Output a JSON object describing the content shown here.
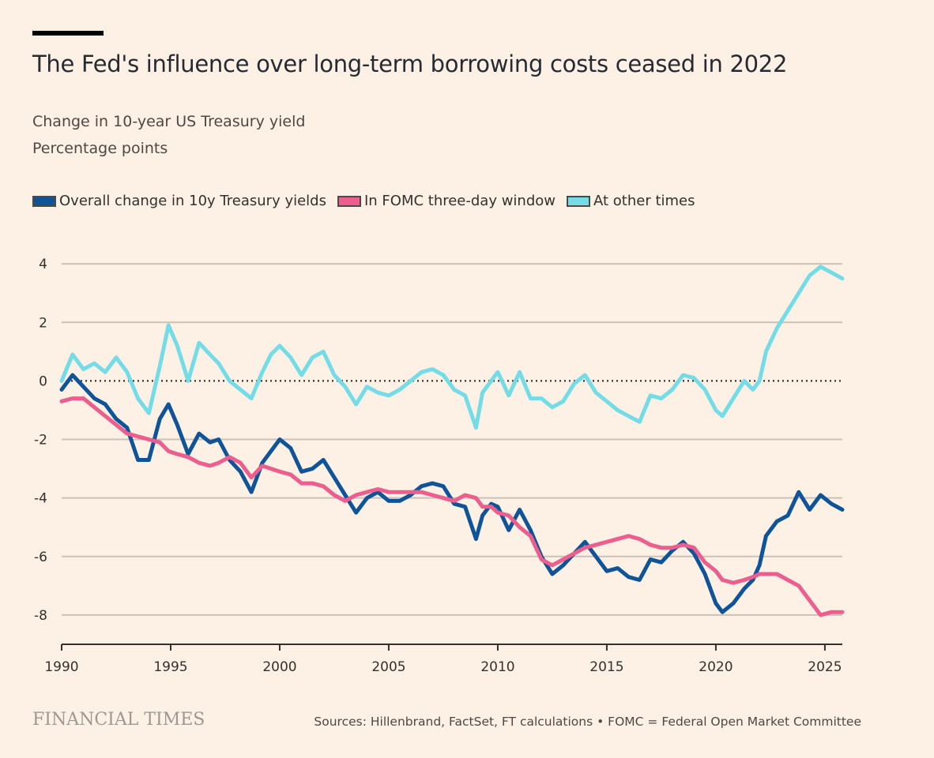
{
  "header": {
    "title": "The Fed's influence over long-term borrowing costs ceased in 2022",
    "subtitle_line1": "Change in 10-year US Treasury yield",
    "subtitle_line2": "Percentage points"
  },
  "legend": [
    {
      "label": "Overall change in 10y Treasury yields",
      "color": "#0F5499"
    },
    {
      "label": "In FOMC three-day window",
      "color": "#EB5E8D"
    },
    {
      "label": "At other times",
      "color": "#74DCE6"
    }
  ],
  "footer": {
    "brand": "FINANCIAL TIMES",
    "source": "Sources: Hillenbrand, FactSet, FT calculations • FOMC = Federal Open Market Committee"
  },
  "chart_data": {
    "type": "line",
    "xlim": [
      1990,
      2025.8
    ],
    "ylim": [
      -9,
      4.3
    ],
    "x_ticks": [
      1990,
      1995,
      2000,
      2005,
      2010,
      2015,
      2020,
      2025
    ],
    "y_ticks": [
      4,
      2,
      0,
      -2,
      -4,
      -6,
      -8
    ],
    "y_tick_labels": [
      "4",
      "2",
      "0",
      "-2",
      "-4",
      "-6",
      "-8"
    ],
    "zero_line": "dotted",
    "grid": "horizontal",
    "series": [
      {
        "name": "At other times",
        "color": "#74DCE6",
        "points": [
          [
            1990,
            0.0
          ],
          [
            1990.5,
            0.9
          ],
          [
            1991,
            0.4
          ],
          [
            1991.5,
            0.6
          ],
          [
            1992,
            0.3
          ],
          [
            1992.5,
            0.8
          ],
          [
            1993,
            0.3
          ],
          [
            1993.5,
            -0.6
          ],
          [
            1994,
            -1.1
          ],
          [
            1994.5,
            0.5
          ],
          [
            1994.9,
            1.9
          ],
          [
            1995.3,
            1.2
          ],
          [
            1995.8,
            0.0
          ],
          [
            1996.3,
            1.3
          ],
          [
            1996.8,
            0.9
          ],
          [
            1997.2,
            0.6
          ],
          [
            1997.7,
            0.0
          ],
          [
            1998.2,
            -0.3
          ],
          [
            1998.7,
            -0.6
          ],
          [
            1999.2,
            0.3
          ],
          [
            1999.6,
            0.9
          ],
          [
            2000.0,
            1.2
          ],
          [
            2000.5,
            0.8
          ],
          [
            2001.0,
            0.2
          ],
          [
            2001.5,
            0.8
          ],
          [
            2002.0,
            1.0
          ],
          [
            2002.5,
            0.2
          ],
          [
            2003.0,
            -0.2
          ],
          [
            2003.5,
            -0.8
          ],
          [
            2004.0,
            -0.2
          ],
          [
            2004.5,
            -0.4
          ],
          [
            2005.0,
            -0.5
          ],
          [
            2005.5,
            -0.3
          ],
          [
            2006.0,
            0.0
          ],
          [
            2006.5,
            0.3
          ],
          [
            2007.0,
            0.4
          ],
          [
            2007.5,
            0.2
          ],
          [
            2008.0,
            -0.3
          ],
          [
            2008.5,
            -0.5
          ],
          [
            2009.0,
            -1.6
          ],
          [
            2009.3,
            -0.4
          ],
          [
            2009.7,
            0.0
          ],
          [
            2010.0,
            0.3
          ],
          [
            2010.5,
            -0.5
          ],
          [
            2011.0,
            0.3
          ],
          [
            2011.5,
            -0.6
          ],
          [
            2012.0,
            -0.6
          ],
          [
            2012.5,
            -0.9
          ],
          [
            2013.0,
            -0.7
          ],
          [
            2013.5,
            -0.1
          ],
          [
            2014.0,
            0.2
          ],
          [
            2014.5,
            -0.4
          ],
          [
            2015.0,
            -0.7
          ],
          [
            2015.5,
            -1.0
          ],
          [
            2016.0,
            -1.2
          ],
          [
            2016.5,
            -1.4
          ],
          [
            2017.0,
            -0.5
          ],
          [
            2017.5,
            -0.6
          ],
          [
            2018.0,
            -0.3
          ],
          [
            2018.5,
            0.2
          ],
          [
            2019.0,
            0.1
          ],
          [
            2019.5,
            -0.3
          ],
          [
            2020.0,
            -1.0
          ],
          [
            2020.3,
            -1.2
          ],
          [
            2020.8,
            -0.6
          ],
          [
            2021.3,
            0.0
          ],
          [
            2021.7,
            -0.3
          ],
          [
            2022.0,
            0.0
          ],
          [
            2022.3,
            1.0
          ],
          [
            2022.8,
            1.8
          ],
          [
            2023.3,
            2.4
          ],
          [
            2023.8,
            3.0
          ],
          [
            2024.3,
            3.6
          ],
          [
            2024.8,
            3.9
          ],
          [
            2025.3,
            3.7
          ],
          [
            2025.8,
            3.5
          ]
        ]
      },
      {
        "name": "Overall change in 10y Treasury yields",
        "color": "#0F5499",
        "points": [
          [
            1990,
            -0.3
          ],
          [
            1990.5,
            0.2
          ],
          [
            1991,
            -0.2
          ],
          [
            1991.5,
            -0.6
          ],
          [
            1992,
            -0.8
          ],
          [
            1992.5,
            -1.3
          ],
          [
            1993,
            -1.6
          ],
          [
            1993.5,
            -2.7
          ],
          [
            1994,
            -2.7
          ],
          [
            1994.5,
            -1.3
          ],
          [
            1994.9,
            -0.8
          ],
          [
            1995.3,
            -1.5
          ],
          [
            1995.8,
            -2.5
          ],
          [
            1996.3,
            -1.8
          ],
          [
            1996.8,
            -2.1
          ],
          [
            1997.2,
            -2.0
          ],
          [
            1997.7,
            -2.7
          ],
          [
            1998.2,
            -3.1
          ],
          [
            1998.7,
            -3.8
          ],
          [
            1999.2,
            -2.8
          ],
          [
            1999.6,
            -2.4
          ],
          [
            2000.0,
            -2.0
          ],
          [
            2000.5,
            -2.3
          ],
          [
            2001.0,
            -3.1
          ],
          [
            2001.5,
            -3.0
          ],
          [
            2002.0,
            -2.7
          ],
          [
            2002.5,
            -3.3
          ],
          [
            2003.0,
            -3.9
          ],
          [
            2003.5,
            -4.5
          ],
          [
            2004.0,
            -4.0
          ],
          [
            2004.5,
            -3.8
          ],
          [
            2005.0,
            -4.1
          ],
          [
            2005.5,
            -4.1
          ],
          [
            2006.0,
            -3.9
          ],
          [
            2006.5,
            -3.6
          ],
          [
            2007.0,
            -3.5
          ],
          [
            2007.5,
            -3.6
          ],
          [
            2008.0,
            -4.2
          ],
          [
            2008.5,
            -4.3
          ],
          [
            2009.0,
            -5.4
          ],
          [
            2009.3,
            -4.6
          ],
          [
            2009.7,
            -4.2
          ],
          [
            2010.0,
            -4.3
          ],
          [
            2010.5,
            -5.1
          ],
          [
            2011.0,
            -4.4
          ],
          [
            2011.5,
            -5.1
          ],
          [
            2012.0,
            -6.0
          ],
          [
            2012.5,
            -6.6
          ],
          [
            2013.0,
            -6.3
          ],
          [
            2013.5,
            -5.9
          ],
          [
            2014.0,
            -5.5
          ],
          [
            2014.5,
            -6.0
          ],
          [
            2015.0,
            -6.5
          ],
          [
            2015.5,
            -6.4
          ],
          [
            2016.0,
            -6.7
          ],
          [
            2016.5,
            -6.8
          ],
          [
            2017.0,
            -6.1
          ],
          [
            2017.5,
            -6.2
          ],
          [
            2018.0,
            -5.8
          ],
          [
            2018.5,
            -5.5
          ],
          [
            2019.0,
            -5.9
          ],
          [
            2019.5,
            -6.6
          ],
          [
            2020.0,
            -7.6
          ],
          [
            2020.3,
            -7.9
          ],
          [
            2020.8,
            -7.6
          ],
          [
            2021.3,
            -7.1
          ],
          [
            2021.7,
            -6.8
          ],
          [
            2022.0,
            -6.3
          ],
          [
            2022.3,
            -5.3
          ],
          [
            2022.8,
            -4.8
          ],
          [
            2023.3,
            -4.6
          ],
          [
            2023.8,
            -3.8
          ],
          [
            2024.3,
            -4.4
          ],
          [
            2024.8,
            -3.9
          ],
          [
            2025.3,
            -4.2
          ],
          [
            2025.8,
            -4.4
          ]
        ]
      },
      {
        "name": "In FOMC three-day window",
        "color": "#EB5E8D",
        "points": [
          [
            1990,
            -0.7
          ],
          [
            1990.5,
            -0.6
          ],
          [
            1991,
            -0.6
          ],
          [
            1991.5,
            -0.9
          ],
          [
            1992,
            -1.2
          ],
          [
            1992.5,
            -1.5
          ],
          [
            1993,
            -1.8
          ],
          [
            1993.5,
            -1.9
          ],
          [
            1994,
            -2.0
          ],
          [
            1994.5,
            -2.1
          ],
          [
            1994.9,
            -2.4
          ],
          [
            1995.3,
            -2.5
          ],
          [
            1995.8,
            -2.6
          ],
          [
            1996.3,
            -2.8
          ],
          [
            1996.8,
            -2.9
          ],
          [
            1997.2,
            -2.8
          ],
          [
            1997.7,
            -2.6
          ],
          [
            1998.2,
            -2.8
          ],
          [
            1998.7,
            -3.3
          ],
          [
            1999.2,
            -2.9
          ],
          [
            1999.6,
            -3.0
          ],
          [
            2000.0,
            -3.1
          ],
          [
            2000.5,
            -3.2
          ],
          [
            2001.0,
            -3.5
          ],
          [
            2001.5,
            -3.5
          ],
          [
            2002.0,
            -3.6
          ],
          [
            2002.5,
            -3.9
          ],
          [
            2003.0,
            -4.1
          ],
          [
            2003.5,
            -3.9
          ],
          [
            2004.0,
            -3.8
          ],
          [
            2004.5,
            -3.7
          ],
          [
            2005.0,
            -3.8
          ],
          [
            2005.5,
            -3.8
          ],
          [
            2006.0,
            -3.8
          ],
          [
            2006.5,
            -3.8
          ],
          [
            2007.0,
            -3.9
          ],
          [
            2007.5,
            -4.0
          ],
          [
            2008.0,
            -4.1
          ],
          [
            2008.5,
            -3.9
          ],
          [
            2009.0,
            -4.0
          ],
          [
            2009.3,
            -4.3
          ],
          [
            2009.7,
            -4.3
          ],
          [
            2010.0,
            -4.5
          ],
          [
            2010.5,
            -4.6
          ],
          [
            2011.0,
            -5.0
          ],
          [
            2011.5,
            -5.3
          ],
          [
            2012.0,
            -6.1
          ],
          [
            2012.5,
            -6.3
          ],
          [
            2013.0,
            -6.1
          ],
          [
            2013.5,
            -5.9
          ],
          [
            2014.0,
            -5.7
          ],
          [
            2014.5,
            -5.6
          ],
          [
            2015.0,
            -5.5
          ],
          [
            2015.5,
            -5.4
          ],
          [
            2016.0,
            -5.3
          ],
          [
            2016.5,
            -5.4
          ],
          [
            2017.0,
            -5.6
          ],
          [
            2017.5,
            -5.7
          ],
          [
            2018.0,
            -5.7
          ],
          [
            2018.5,
            -5.6
          ],
          [
            2019.0,
            -5.7
          ],
          [
            2019.5,
            -6.2
          ],
          [
            2020.0,
            -6.5
          ],
          [
            2020.3,
            -6.8
          ],
          [
            2020.8,
            -6.9
          ],
          [
            2021.3,
            -6.8
          ],
          [
            2021.7,
            -6.7
          ],
          [
            2022.0,
            -6.6
          ],
          [
            2022.3,
            -6.6
          ],
          [
            2022.8,
            -6.6
          ],
          [
            2023.3,
            -6.8
          ],
          [
            2023.8,
            -7.0
          ],
          [
            2024.3,
            -7.5
          ],
          [
            2024.8,
            -8.0
          ],
          [
            2025.3,
            -7.9
          ],
          [
            2025.8,
            -7.9
          ]
        ]
      }
    ]
  }
}
